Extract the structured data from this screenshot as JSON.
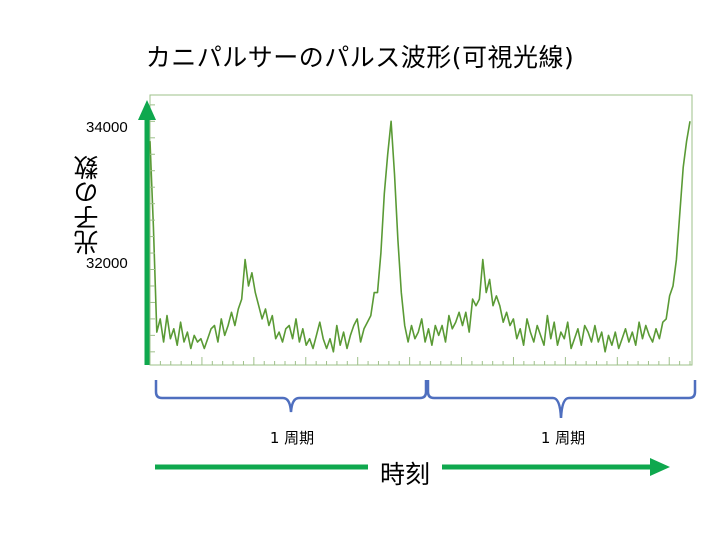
{
  "title": "カニパルサーのパルス波形(可視光線)",
  "ylabel": "光子の数",
  "xlabel": "時刻",
  "period_labels": [
    "1 周期",
    "1 周期"
  ],
  "colors": {
    "line": "#5a9a35",
    "frame": "#9ec08a",
    "axis_arrow": "#0fa84e",
    "brace": "#4f6fbf"
  },
  "chart_data": {
    "type": "line",
    "title": "カニパルサーのパルス波形(可視光線)",
    "xlabel": "時刻",
    "ylabel": "光子の数",
    "ytick_labels": [
      "34000",
      "32000"
    ],
    "yticks": [
      34000,
      32000
    ],
    "ylim": [
      30600,
      34700
    ],
    "x": [
      0,
      1,
      2,
      3,
      4,
      5,
      6,
      7,
      8,
      9,
      10,
      11,
      12,
      13,
      14,
      15,
      16,
      17,
      18,
      19,
      20,
      21,
      22,
      23,
      24,
      25,
      26,
      27,
      28,
      29,
      30,
      31,
      32,
      33,
      34,
      35,
      36,
      37,
      38,
      39,
      40,
      41,
      42,
      43,
      44,
      45,
      46,
      47,
      48,
      49,
      50,
      51,
      52,
      53,
      54,
      55,
      56,
      57,
      58,
      59,
      60,
      61,
      62,
      63,
      64,
      65,
      66,
      67,
      68,
      69,
      70,
      71,
      72,
      73,
      74,
      75,
      76,
      77,
      78,
      79,
      80,
      81,
      82,
      83,
      84,
      85,
      86,
      87,
      88,
      89,
      90,
      91,
      92,
      93,
      94,
      95,
      96,
      97,
      98,
      99,
      100,
      101,
      102,
      103,
      104,
      105,
      106,
      107,
      108,
      109,
      110,
      111,
      112,
      113,
      114,
      115,
      116,
      117,
      118,
      119,
      120,
      121,
      122,
      123,
      124,
      125,
      126,
      127,
      128,
      129,
      130,
      131,
      132,
      133,
      134,
      135,
      136,
      137,
      138,
      139,
      140,
      141,
      142,
      143,
      144,
      145,
      146,
      147,
      148,
      149,
      150,
      151,
      152,
      153,
      154,
      155,
      156,
      157,
      158,
      159
    ],
    "series": [
      {
        "values": [
          34000,
          32700,
          31100,
          31300,
          30950,
          31350,
          31000,
          31150,
          30900,
          31250,
          30950,
          31100,
          30850,
          31050,
          30950,
          31000,
          30850,
          31000,
          31150,
          31200,
          30950,
          31300,
          31050,
          31200,
          31400,
          31200,
          31450,
          31600,
          32200,
          31800,
          32000,
          31700,
          31500,
          31300,
          31450,
          31200,
          31350,
          31000,
          31100,
          30950,
          31150,
          31200,
          31000,
          31300,
          30950,
          31150,
          30900,
          31000,
          30850,
          31050,
          31250,
          31000,
          30850,
          31000,
          30800,
          31200,
          30900,
          31100,
          30850,
          31050,
          31200,
          31300,
          30950,
          31150,
          31250,
          31350,
          31700,
          31700,
          32300,
          33200,
          33800,
          34300,
          33500,
          32500,
          31700,
          31200,
          30950,
          31200,
          31000,
          31100,
          31300,
          30950,
          31150,
          30900,
          31200,
          31050,
          31200,
          30950,
          31350,
          31150,
          31250,
          31400,
          31200,
          31400,
          31100,
          31600,
          31500,
          31600,
          32200,
          31700,
          31900,
          31500,
          31650,
          31500,
          31250,
          31400,
          31200,
          31300,
          31000,
          31150,
          30900,
          31300,
          31100,
          30950,
          31200,
          31050,
          30900,
          31350,
          31000,
          31250,
          30900,
          31100,
          31000,
          31250,
          30850,
          31000,
          31150,
          30900,
          31200,
          31100,
          30950,
          31200,
          30950,
          31100,
          30800,
          31050,
          30900,
          31100,
          30850,
          31000,
          31150,
          30950,
          31100,
          30900,
          31250,
          31000,
          31200,
          31050,
          30950,
          31150,
          31000,
          31250,
          31300,
          31650,
          31800,
          32200,
          32900,
          33600,
          34000,
          34300
        ]
      }
    ]
  }
}
